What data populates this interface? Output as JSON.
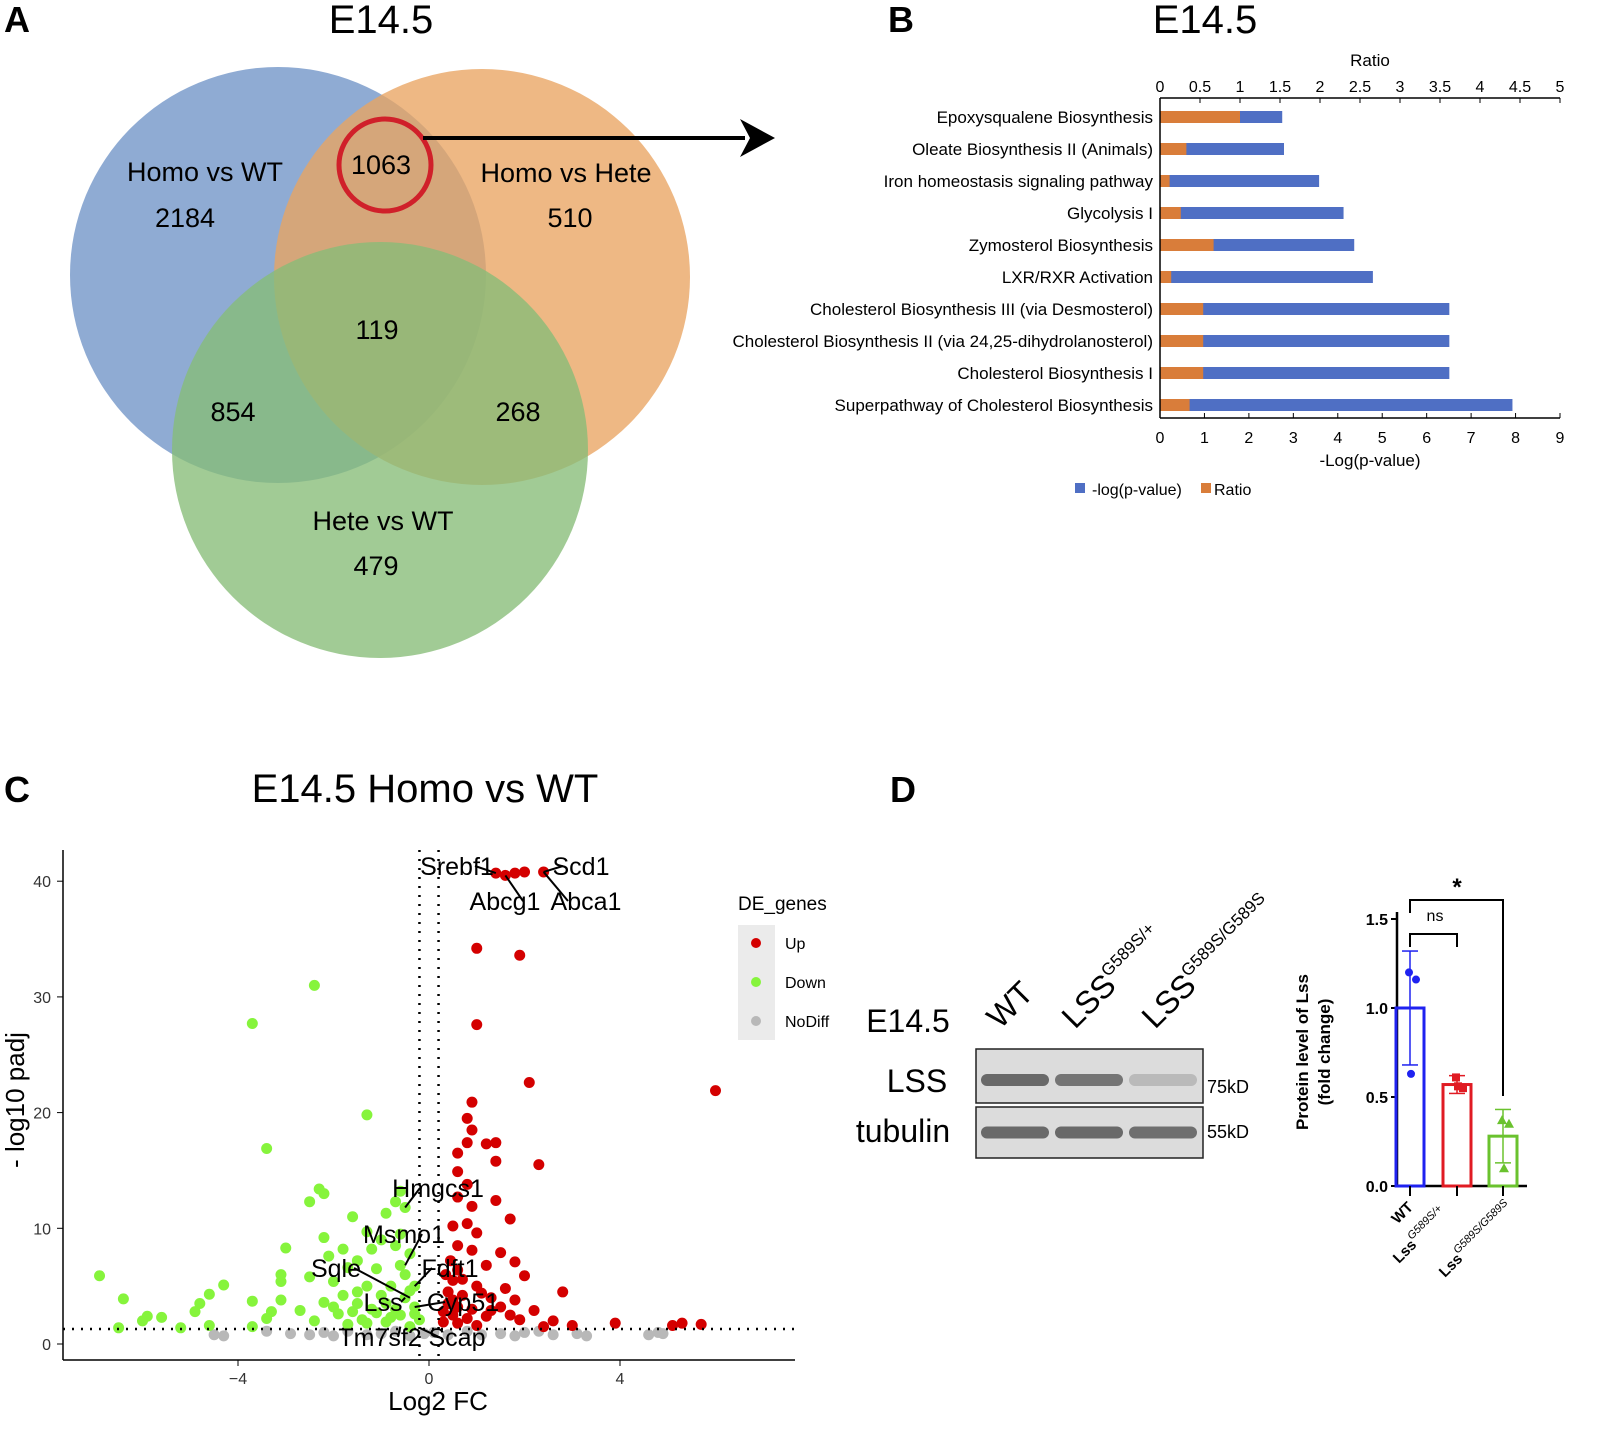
{
  "panels": {
    "A": {
      "letter": "A",
      "title": "E14.5",
      "sets": [
        {
          "name": "Homo vs WT",
          "only": "2184",
          "color": "#6f93c6"
        },
        {
          "name": "Homo vs Hete",
          "only": "510",
          "color": "#e9a462"
        },
        {
          "name": "Hete vs WT",
          "only": "479",
          "color": "#86bd77"
        }
      ],
      "intersections": {
        "homoWT_homoHete": "1063",
        "all_three": "119",
        "homoWT_heteWT": "854",
        "homoHete_heteWT": "268"
      },
      "highlight_color": "#d0202a"
    },
    "B": {
      "letter": "B",
      "title": "E14.5"
    },
    "C": {
      "letter": "C",
      "title": "E14.5  Homo vs WT"
    },
    "D": {
      "letter": "D",
      "blot": {
        "stage": "E14.5",
        "lanes": [
          {
            "base": "WT",
            "sup": ""
          },
          {
            "base": "LSS",
            "sup": "G589S/+"
          },
          {
            "base": "LSS",
            "sup": "G589S/G589S"
          }
        ],
        "rows": [
          {
            "label": "LSS",
            "size": "75kD",
            "band_intensity": [
              1.0,
              0.9,
              0.3
            ]
          },
          {
            "label": "tubulin",
            "size": "55kD",
            "band_intensity": [
              1.0,
              1.0,
              0.95
            ]
          }
        ]
      }
    }
  },
  "chart_data": [
    {
      "id": "pathway-bar",
      "type": "bar",
      "orientation": "horizontal",
      "title": "E14.5",
      "xlabel": "-Log(p-value)",
      "x2label": "Ratio",
      "xlim": [
        0,
        9
      ],
      "x2lim": [
        0,
        5
      ],
      "xticks": [
        "0",
        "1",
        "2",
        "3",
        "4",
        "5",
        "6",
        "7",
        "8",
        "9"
      ],
      "x2ticks": [
        "0",
        "0.5",
        "1",
        "1.5",
        "2",
        "2.5",
        "3",
        "3.5",
        "4",
        "4.5",
        "5"
      ],
      "categories": [
        "Epoxysqualene Biosynthesis",
        "Oleate Biosynthesis II (Animals)",
        "Iron homeostasis signaling pathway",
        "Glycolysis I",
        "Zymosterol Biosynthesis",
        "LXR/RXR Activation",
        "Cholesterol Biosynthesis III (via Desmosterol)",
        "Cholesterol Biosynthesis II (via 24,25-dihydrolanosterol)",
        "Cholesterol Biosynthesis I",
        "Superpathway of Cholesterol Biosynthesis"
      ],
      "series": [
        {
          "name": "-log(p-value)",
          "color": "#4f6fc4",
          "axis": "bottom",
          "values": [
            2.75,
            2.79,
            3.58,
            4.13,
            4.37,
            4.79,
            6.51,
            6.51,
            6.51,
            7.93
          ]
        },
        {
          "name": "Ratio",
          "color": "#d97d3a",
          "axis": "top",
          "values": [
            1.0,
            0.33,
            0.12,
            0.26,
            0.67,
            0.14,
            0.54,
            0.54,
            0.54,
            0.37
          ]
        }
      ],
      "legend": "bottom"
    },
    {
      "id": "volcano",
      "type": "scatter",
      "title": "E14.5  Homo vs WT",
      "xlabel": "Log2 FC",
      "ylabel": "- log10  padj",
      "xlim": [
        -7.0,
        7.5
      ],
      "ylim": [
        -1.4,
        42.5
      ],
      "xticks": [
        "-4",
        "0",
        "4"
      ],
      "yticks": [
        "0",
        "10",
        "20",
        "30",
        "40"
      ],
      "thresholds": {
        "log2fc": 0.2,
        "neglog10padj": 1.3
      },
      "legend_title": "DE_genes",
      "legend": "right",
      "series": [
        {
          "name": "Up",
          "color": "#d40000",
          "points": [
            [
              1.4,
              40.7
            ],
            [
              1.8,
              40.7
            ],
            [
              2.0,
              40.8
            ],
            [
              2.4,
              40.8
            ],
            [
              1.6,
              40.5
            ],
            [
              1.0,
              34.2
            ],
            [
              1.9,
              33.6
            ],
            [
              1.0,
              27.6
            ],
            [
              2.1,
              22.6
            ],
            [
              6.0,
              21.9
            ],
            [
              0.9,
              20.9
            ],
            [
              0.8,
              19.5
            ],
            [
              0.9,
              18.5
            ],
            [
              0.8,
              17.4
            ],
            [
              1.2,
              17.3
            ],
            [
              1.4,
              17.4
            ],
            [
              0.6,
              16.5
            ],
            [
              1.4,
              15.8
            ],
            [
              2.3,
              15.5
            ],
            [
              0.6,
              14.9
            ],
            [
              0.8,
              13.8
            ],
            [
              0.6,
              12.7
            ],
            [
              1.4,
              12.4
            ],
            [
              0.9,
              11.9
            ],
            [
              1.7,
              10.8
            ],
            [
              0.5,
              10.2
            ],
            [
              0.8,
              10.4
            ],
            [
              1.0,
              9.6
            ],
            [
              0.6,
              8.5
            ],
            [
              0.9,
              8.1
            ],
            [
              1.5,
              7.9
            ],
            [
              1.8,
              7.1
            ],
            [
              1.2,
              6.8
            ],
            [
              0.6,
              6.4
            ],
            [
              2.0,
              5.9
            ],
            [
              0.5,
              5.5
            ],
            [
              1.0,
              5.0
            ],
            [
              1.6,
              4.8
            ],
            [
              0.7,
              4.2
            ],
            [
              1.3,
              4.0
            ],
            [
              2.8,
              4.5
            ],
            [
              1.8,
              3.8
            ],
            [
              0.4,
              3.5
            ],
            [
              0.9,
              3.0
            ],
            [
              1.5,
              3.2
            ],
            [
              2.2,
              2.9
            ],
            [
              0.5,
              2.5
            ],
            [
              1.2,
              2.4
            ],
            [
              2.6,
              2.0
            ],
            [
              3.0,
              1.6
            ],
            [
              3.9,
              1.8
            ],
            [
              5.1,
              1.6
            ],
            [
              5.3,
              1.8
            ],
            [
              5.7,
              1.7
            ],
            [
              1.9,
              2.1
            ],
            [
              0.6,
              1.8
            ],
            [
              1.0,
              1.6
            ],
            [
              2.4,
              1.5
            ],
            [
              0.3,
              2.8
            ],
            [
              0.4,
              4.5
            ],
            [
              0.35,
              6.0
            ],
            [
              0.45,
              7.2
            ],
            [
              0.7,
              5.6
            ],
            [
              1.1,
              4.4
            ],
            [
              0.5,
              3.8
            ],
            [
              0.8,
              2.2
            ],
            [
              1.3,
              2.9
            ],
            [
              1.7,
              2.5
            ],
            [
              0.3,
              1.9
            ],
            [
              0.6,
              3.2
            ]
          ]
        },
        {
          "name": "Down",
          "color": "#86f43c",
          "points": [
            [
              -2.4,
              31.0
            ],
            [
              -3.7,
              27.7
            ],
            [
              -3.4,
              16.9
            ],
            [
              -1.3,
              19.8
            ],
            [
              -2.3,
              13.4
            ],
            [
              -2.2,
              13.0
            ],
            [
              -2.5,
              12.3
            ],
            [
              -0.6,
              13.2
            ],
            [
              -0.5,
              11.8
            ],
            [
              -0.7,
              12.3
            ],
            [
              -0.9,
              11.3
            ],
            [
              -1.6,
              11.0
            ],
            [
              -1.3,
              9.7
            ],
            [
              -0.6,
              9.5
            ],
            [
              -2.2,
              9.2
            ],
            [
              -1.0,
              9.0
            ],
            [
              -3.0,
              8.3
            ],
            [
              -1.8,
              8.2
            ],
            [
              -2.1,
              7.6
            ],
            [
              -0.7,
              8.5
            ],
            [
              -1.5,
              7.2
            ],
            [
              -0.4,
              7.8
            ],
            [
              -3.1,
              6.0
            ],
            [
              -6.9,
              5.9
            ],
            [
              -2.5,
              5.8
            ],
            [
              -1.7,
              6.6
            ],
            [
              -1.1,
              6.5
            ],
            [
              -0.5,
              6.0
            ],
            [
              -2.0,
              5.4
            ],
            [
              -3.1,
              5.4
            ],
            [
              -4.3,
              5.1
            ],
            [
              -1.3,
              5.0
            ],
            [
              -0.8,
              5.0
            ],
            [
              -4.6,
              4.3
            ],
            [
              -1.8,
              4.2
            ],
            [
              -0.4,
              4.6
            ],
            [
              -6.4,
              3.9
            ],
            [
              -3.1,
              3.8
            ],
            [
              -2.2,
              3.6
            ],
            [
              -3.7,
              3.7
            ],
            [
              -4.8,
              3.5
            ],
            [
              -1.5,
              3.5
            ],
            [
              -0.9,
              3.5
            ],
            [
              -0.3,
              3.2
            ],
            [
              -4.9,
              2.8
            ],
            [
              -2.7,
              2.9
            ],
            [
              -3.3,
              2.8
            ],
            [
              -1.9,
              2.6
            ],
            [
              -1.1,
              2.7
            ],
            [
              -0.6,
              2.5
            ],
            [
              -5.9,
              2.4
            ],
            [
              -5.6,
              2.3
            ],
            [
              -6.0,
              2.0
            ],
            [
              -3.4,
              2.2
            ],
            [
              -2.4,
              2.0
            ],
            [
              -1.4,
              2.1
            ],
            [
              -0.2,
              2.1
            ],
            [
              -0.9,
              1.9
            ],
            [
              -5.2,
              1.4
            ],
            [
              -6.5,
              1.4
            ],
            [
              -3.7,
              1.5
            ],
            [
              -4.6,
              1.6
            ],
            [
              -1.7,
              1.7
            ],
            [
              -0.4,
              1.5
            ],
            [
              -1.5,
              4.5
            ],
            [
              -1.0,
              4.2
            ],
            [
              -0.5,
              4.0
            ],
            [
              -1.2,
              3.0
            ],
            [
              -0.7,
              3.0
            ],
            [
              -1.6,
              2.8
            ],
            [
              -0.3,
              5.0
            ],
            [
              -0.6,
              6.8
            ],
            [
              -1.2,
              8.2
            ],
            [
              -2.0,
              3.2
            ],
            [
              -1.3,
              1.8
            ],
            [
              -0.8,
              2.3
            ],
            [
              -0.3,
              2.6
            ]
          ]
        },
        {
          "name": "NoDiff",
          "color": "#b8b8b8",
          "points": [
            [
              -4.5,
              0.8
            ],
            [
              -4.3,
              0.7
            ],
            [
              -3.4,
              1.1
            ],
            [
              -2.9,
              0.9
            ],
            [
              -2.5,
              0.8
            ],
            [
              -2.2,
              1.0
            ],
            [
              -2.0,
              0.7
            ],
            [
              -1.7,
              1.1
            ],
            [
              -1.3,
              0.8
            ],
            [
              -1.0,
              0.9
            ],
            [
              -0.7,
              1.1
            ],
            [
              -0.4,
              0.7
            ],
            [
              -0.1,
              0.9
            ],
            [
              0.1,
              1.0
            ],
            [
              0.4,
              0.8
            ],
            [
              0.8,
              1.1
            ],
            [
              1.1,
              0.8
            ],
            [
              1.5,
              0.9
            ],
            [
              1.8,
              0.7
            ],
            [
              2.0,
              1.0
            ],
            [
              2.3,
              1.1
            ],
            [
              2.6,
              0.8
            ],
            [
              3.1,
              0.9
            ],
            [
              3.3,
              0.7
            ],
            [
              4.6,
              0.8
            ],
            [
              4.8,
              1.0
            ],
            [
              4.9,
              0.9
            ]
          ]
        }
      ],
      "labeled_genes": [
        {
          "gene": "Srebf1",
          "point": [
            1.4,
            40.7
          ]
        },
        {
          "gene": "Scd1",
          "point": [
            2.4,
            40.8
          ]
        },
        {
          "gene": "Abcg1",
          "point": [
            1.6,
            40.5
          ]
        },
        {
          "gene": "Abca1",
          "point": [
            2.4,
            40.8
          ]
        },
        {
          "gene": "Hmgcs1",
          "point": [
            -0.5,
            11.8
          ]
        },
        {
          "gene": "Msmo1",
          "point": [
            -0.5,
            6.8
          ]
        },
        {
          "gene": "Sqle",
          "point": [
            -0.4,
            4.0
          ]
        },
        {
          "gene": "Fdft1",
          "point": [
            -0.3,
            5.0
          ]
        },
        {
          "gene": "Lss",
          "point": [
            -0.5,
            4.0
          ]
        },
        {
          "gene": "Cyp51",
          "point": [
            -0.3,
            3.2
          ]
        },
        {
          "gene": "Tm7sf2",
          "point": [
            -0.6,
            1.5
          ]
        },
        {
          "gene": "Scap",
          "point": [
            -0.2,
            1.4
          ]
        }
      ]
    },
    {
      "id": "lss-protein-bar",
      "type": "bar",
      "ylabel": [
        "Protein level of Lss",
        "(fold change)"
      ],
      "ylim": [
        0,
        1.5
      ],
      "yticks": [
        "0.0",
        "0.5",
        "1.0",
        "1.5"
      ],
      "categories": [
        {
          "base": "WT",
          "sup": ""
        },
        {
          "base": "Lss",
          "sup": "G589S/+"
        },
        {
          "base": "Lss",
          "sup": "G589S/G589S"
        }
      ],
      "values": [
        1.0,
        0.57,
        0.28
      ],
      "sd": [
        0.32,
        0.05,
        0.15
      ],
      "replicates": [
        [
          1.2,
          1.16,
          0.63
        ],
        [
          0.61,
          0.55,
          0.56
        ],
        [
          0.37,
          0.35,
          0.1
        ]
      ],
      "markers": [
        "circle",
        "square",
        "triangle"
      ],
      "colors": [
        "#1f22f0",
        "#e01b23",
        "#6ac22e"
      ],
      "significance": [
        {
          "from": 0,
          "to": 1,
          "label": "ns"
        },
        {
          "from": 0,
          "to": 2,
          "label": "*"
        }
      ]
    }
  ]
}
